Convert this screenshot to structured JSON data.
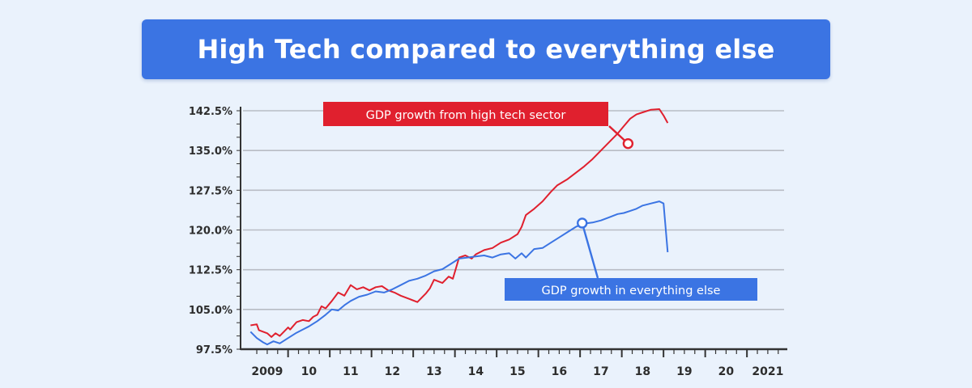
{
  "header": {
    "title": "High Tech compared to everything else"
  },
  "chart_data": {
    "type": "line",
    "title": "High Tech compared to everything else",
    "xlabel": "",
    "ylabel": "",
    "xlim": [
      2008.6,
      2021.5
    ],
    "ylim": [
      97.5,
      142.5
    ],
    "y_ticks": [
      "97.5%",
      "105.0%",
      "112.5%",
      "120.0%",
      "127.5%",
      "135.0%",
      "142.5%"
    ],
    "y_tick_values": [
      97.5,
      105.0,
      112.5,
      120.0,
      127.5,
      135.0,
      142.5
    ],
    "x_ticks": [
      "2009",
      "10",
      "11",
      "12",
      "13",
      "14",
      "15",
      "16",
      "17",
      "18",
      "19",
      "20",
      "2021"
    ],
    "x_tick_values": [
      2009,
      2010,
      2011,
      2012,
      2013,
      2014,
      2015,
      2016,
      2017,
      2018,
      2019,
      2020,
      2021
    ],
    "grid": true,
    "colors": {
      "high_tech": "#e0202e",
      "everything_else": "#3b74e3",
      "grid": "#b8bcc4",
      "axis": "#333333"
    },
    "series": [
      {
        "name": "GDP growth from high tech sector",
        "x": [
          2008.6,
          2008.75,
          2008.8,
          2009.0,
          2009.1,
          2009.2,
          2009.3,
          2009.5,
          2009.55,
          2009.7,
          2009.85,
          2010.0,
          2010.1,
          2010.2,
          2010.3,
          2010.4,
          2010.55,
          2010.7,
          2010.85,
          2011.0,
          2011.15,
          2011.3,
          2011.45,
          2011.6,
          2011.75,
          2011.9,
          2012.05,
          2012.2,
          2012.4,
          2012.6,
          2012.8,
          2012.9,
          2013.0,
          2013.2,
          2013.35,
          2013.45,
          2013.6,
          2013.75,
          2013.9,
          2014.0,
          2014.2,
          2014.4,
          2014.6,
          2014.8,
          2015.0,
          2015.1,
          2015.2,
          2015.4,
          2015.6,
          2015.8,
          2015.95,
          2016.2,
          2016.4,
          2016.6,
          2016.8,
          2017.0,
          2017.2,
          2017.4,
          2017.55,
          2017.7,
          2017.85,
          2018.0,
          2018.2,
          2018.4,
          2018.5,
          2018.6
        ],
        "values": [
          102.0,
          102.2,
          101.1,
          100.5,
          99.8,
          100.5,
          100.0,
          101.6,
          101.2,
          102.6,
          103.0,
          102.8,
          103.6,
          104.0,
          105.6,
          105.2,
          106.6,
          108.2,
          107.6,
          109.6,
          108.8,
          109.2,
          108.6,
          109.2,
          109.4,
          108.6,
          108.2,
          107.6,
          107.0,
          106.4,
          108.0,
          109.0,
          110.6,
          110.0,
          111.2,
          110.8,
          114.8,
          115.2,
          114.6,
          115.4,
          116.2,
          116.6,
          117.6,
          118.2,
          119.2,
          120.6,
          122.8,
          124.0,
          125.4,
          127.2,
          128.4,
          129.6,
          130.8,
          132.0,
          133.4,
          135.0,
          136.6,
          138.2,
          139.6,
          141.0,
          141.8,
          142.2,
          142.7,
          142.8,
          141.6,
          140.2
        ]
      },
      {
        "name": "GDP growth in everything else",
        "x": [
          2008.6,
          2008.75,
          2008.9,
          2009.0,
          2009.15,
          2009.3,
          2009.5,
          2009.7,
          2009.85,
          2010.0,
          2010.2,
          2010.4,
          2010.55,
          2010.7,
          2010.85,
          2011.0,
          2011.2,
          2011.4,
          2011.6,
          2011.8,
          2012.0,
          2012.2,
          2012.4,
          2012.6,
          2012.8,
          2013.0,
          2013.2,
          2013.4,
          2013.6,
          2013.8,
          2014.0,
          2014.2,
          2014.4,
          2014.6,
          2014.8,
          2014.95,
          2015.1,
          2015.2,
          2015.4,
          2015.6,
          2015.8,
          2016.0,
          2016.2,
          2016.4,
          2016.6,
          2016.8,
          2017.0,
          2017.2,
          2017.4,
          2017.55,
          2017.7,
          2017.85,
          2018.0,
          2018.2,
          2018.4,
          2018.5,
          2018.6
        ],
        "values": [
          100.8,
          99.6,
          98.8,
          98.4,
          99.0,
          98.6,
          99.6,
          100.6,
          101.2,
          101.8,
          102.8,
          104.0,
          105.0,
          104.8,
          105.8,
          106.6,
          107.4,
          107.8,
          108.4,
          108.2,
          108.8,
          109.6,
          110.4,
          110.8,
          111.4,
          112.2,
          112.6,
          113.6,
          114.6,
          114.8,
          115.0,
          115.2,
          114.8,
          115.4,
          115.6,
          114.6,
          115.6,
          114.8,
          116.4,
          116.6,
          117.6,
          118.6,
          119.6,
          120.6,
          121.2,
          121.4,
          121.8,
          122.4,
          123.0,
          123.2,
          123.6,
          124.0,
          124.6,
          125.0,
          125.4,
          125.0,
          115.8
        ]
      }
    ],
    "annotations": [
      {
        "series": 0,
        "text": "GDP growth from high tech sector",
        "x": 2017.65,
        "y": 136.3,
        "color": "#e0202e"
      },
      {
        "series": 1,
        "text": "GDP growth in everything else",
        "x": 2016.55,
        "y": 121.3,
        "color": "#3b74e3"
      }
    ]
  }
}
